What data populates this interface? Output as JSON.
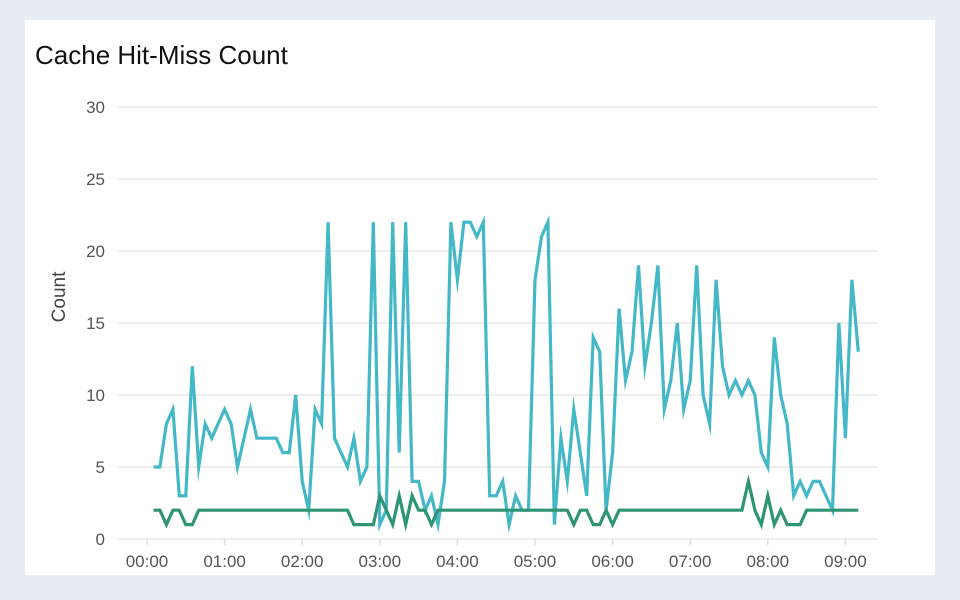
{
  "chart_data": {
    "type": "line",
    "title": "Cache Hit-Miss Count",
    "xlabel": "",
    "ylabel": "Count",
    "ylim": [
      0,
      30
    ],
    "yticks": [
      "0",
      "5",
      "10",
      "15",
      "20",
      "25",
      "30"
    ],
    "xticks": [
      "00:00",
      "01:00",
      "02:00",
      "03:00",
      "04:00",
      "05:00",
      "06:00",
      "07:00",
      "08:00",
      "09:00"
    ],
    "grid": true,
    "x": [
      "00:05",
      "00:10",
      "00:15",
      "00:20",
      "00:25",
      "00:30",
      "00:35",
      "00:40",
      "00:45",
      "00:50",
      "00:55",
      "01:00",
      "01:05",
      "01:10",
      "01:15",
      "01:20",
      "01:25",
      "01:30",
      "01:35",
      "01:40",
      "01:45",
      "01:50",
      "01:55",
      "02:00",
      "02:05",
      "02:10",
      "02:15",
      "02:20",
      "02:25",
      "02:30",
      "02:35",
      "02:40",
      "02:45",
      "02:50",
      "02:55",
      "03:00",
      "03:05",
      "03:10",
      "03:15",
      "03:20",
      "03:25",
      "03:30",
      "03:35",
      "03:40",
      "03:45",
      "03:50",
      "03:55",
      "04:00",
      "04:05",
      "04:10",
      "04:15",
      "04:20",
      "04:25",
      "04:30",
      "04:35",
      "04:40",
      "04:45",
      "04:50",
      "04:55",
      "05:00",
      "05:05",
      "05:10",
      "05:15",
      "05:20",
      "05:25",
      "05:30",
      "05:35",
      "05:40",
      "05:45",
      "05:50",
      "05:55",
      "06:00",
      "06:05",
      "06:10",
      "06:15",
      "06:20",
      "06:25",
      "06:30",
      "06:35",
      "06:40",
      "06:45",
      "06:50",
      "06:55",
      "07:00",
      "07:05",
      "07:10",
      "07:15",
      "07:20",
      "07:25",
      "07:30",
      "07:35",
      "07:40",
      "07:45",
      "07:50",
      "07:55",
      "08:00",
      "08:05",
      "08:10",
      "08:15",
      "08:20",
      "08:25",
      "08:30",
      "08:35",
      "08:40",
      "08:45",
      "08:50",
      "08:55",
      "09:00",
      "09:05",
      "09:10"
    ],
    "series": [
      {
        "color": "#45b8c8",
        "values": [
          5,
          5,
          8,
          9,
          3,
          3,
          12,
          5,
          8,
          7,
          8,
          9,
          8,
          5,
          7,
          9,
          7,
          7,
          7,
          7,
          6,
          6,
          10,
          4,
          2,
          9,
          8,
          22,
          7,
          6,
          5,
          7,
          4,
          5,
          22,
          1,
          2,
          22,
          6,
          22,
          4,
          4,
          2,
          3,
          1,
          4,
          22,
          18,
          22,
          22,
          21,
          22,
          3,
          3,
          4,
          1,
          3,
          2,
          2,
          18,
          21,
          22,
          1,
          7,
          4,
          9,
          6,
          3,
          14,
          13,
          2,
          6,
          16,
          11,
          13,
          19,
          12,
          15,
          19,
          9,
          11,
          15,
          9,
          11,
          19,
          10,
          8,
          18,
          12,
          10,
          11,
          10,
          11,
          10,
          6,
          5,
          14,
          10,
          8,
          3,
          4,
          3,
          4,
          4,
          3,
          2,
          15,
          7,
          18,
          13
        ]
      },
      {
        "color": "#2e9474",
        "values": [
          2,
          2,
          1,
          2,
          2,
          1,
          1,
          2,
          2,
          2,
          2,
          2,
          2,
          2,
          2,
          2,
          2,
          2,
          2,
          2,
          2,
          2,
          2,
          2,
          2,
          2,
          2,
          2,
          2,
          2,
          2,
          1,
          1,
          1,
          1,
          3,
          2,
          1,
          3,
          1,
          3,
          2,
          2,
          1,
          2,
          2,
          2,
          2,
          2,
          2,
          2,
          2,
          2,
          2,
          2,
          2,
          2,
          2,
          2,
          2,
          2,
          2,
          2,
          2,
          2,
          1,
          2,
          2,
          1,
          1,
          2,
          1,
          2,
          2,
          2,
          2,
          2,
          2,
          2,
          2,
          2,
          2,
          2,
          2,
          2,
          2,
          2,
          2,
          2,
          2,
          2,
          2,
          4,
          2,
          1,
          3,
          1,
          2,
          1,
          1,
          1,
          2,
          2,
          2,
          2,
          2,
          2,
          2,
          2,
          2
        ]
      }
    ]
  }
}
